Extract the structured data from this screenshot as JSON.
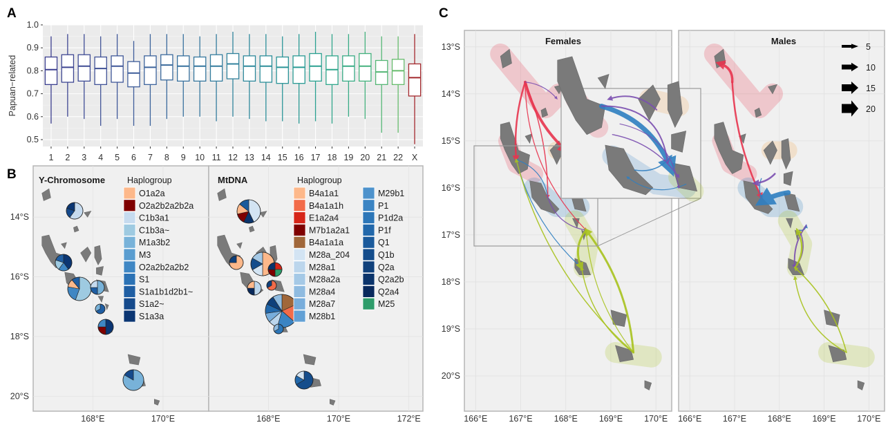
{
  "panels": {
    "a_label": "A",
    "b_label": "B",
    "c_label": "C"
  },
  "chart_data": [
    {
      "type": "box",
      "panel": "A",
      "ylabel": "Papuan−related",
      "ylim": [
        0.47,
        1.0
      ],
      "yticks": [
        "0.5",
        "0.6",
        "0.7",
        "0.8",
        "0.9",
        "1.0"
      ],
      "categories": [
        "1",
        "2",
        "3",
        "4",
        "5",
        "6",
        "7",
        "8",
        "9",
        "10",
        "11",
        "12",
        "13",
        "14",
        "15",
        "16",
        "17",
        "18",
        "19",
        "20",
        "21",
        "22",
        "X"
      ],
      "colors": [
        "#3b3f8f",
        "#3d4591",
        "#3e4b94",
        "#3f5196",
        "#3f5798",
        "#3e5d9a",
        "#3c639b",
        "#3a699c",
        "#37709d",
        "#35769d",
        "#337c9d",
        "#31829c",
        "#2e889b",
        "#2c8e99",
        "#2a9497",
        "#299a94",
        "#2aa090",
        "#2fa68b",
        "#38ab85",
        "#44b17d",
        "#54b675",
        "#66bb6c",
        "#a3282c"
      ],
      "boxes": [
        {
          "min": 0.57,
          "q1": 0.74,
          "median": 0.805,
          "q3": 0.86,
          "max": 0.95
        },
        {
          "min": 0.6,
          "q1": 0.75,
          "median": 0.815,
          "q3": 0.87,
          "max": 0.96
        },
        {
          "min": 0.59,
          "q1": 0.755,
          "median": 0.82,
          "q3": 0.87,
          "max": 0.96
        },
        {
          "min": 0.56,
          "q1": 0.74,
          "median": 0.81,
          "q3": 0.86,
          "max": 0.95
        },
        {
          "min": 0.59,
          "q1": 0.75,
          "median": 0.82,
          "q3": 0.865,
          "max": 0.96
        },
        {
          "min": 0.56,
          "q1": 0.73,
          "median": 0.79,
          "q3": 0.84,
          "max": 0.93
        },
        {
          "min": 0.56,
          "q1": 0.74,
          "median": 0.815,
          "q3": 0.865,
          "max": 0.96
        },
        {
          "min": 0.59,
          "q1": 0.76,
          "median": 0.825,
          "q3": 0.87,
          "max": 0.96
        },
        {
          "min": 0.6,
          "q1": 0.755,
          "median": 0.82,
          "q3": 0.865,
          "max": 0.96
        },
        {
          "min": 0.6,
          "q1": 0.755,
          "median": 0.82,
          "q3": 0.86,
          "max": 0.95
        },
        {
          "min": 0.58,
          "q1": 0.755,
          "median": 0.82,
          "q3": 0.87,
          "max": 0.96
        },
        {
          "min": 0.6,
          "q1": 0.765,
          "median": 0.83,
          "q3": 0.875,
          "max": 0.97
        },
        {
          "min": 0.59,
          "q1": 0.755,
          "median": 0.82,
          "q3": 0.865,
          "max": 0.96
        },
        {
          "min": 0.58,
          "q1": 0.75,
          "median": 0.82,
          "q3": 0.865,
          "max": 0.96
        },
        {
          "min": 0.58,
          "q1": 0.745,
          "median": 0.815,
          "q3": 0.86,
          "max": 0.95
        },
        {
          "min": 0.57,
          "q1": 0.745,
          "median": 0.815,
          "q3": 0.865,
          "max": 0.96
        },
        {
          "min": 0.58,
          "q1": 0.755,
          "median": 0.82,
          "q3": 0.875,
          "max": 0.97
        },
        {
          "min": 0.57,
          "q1": 0.74,
          "median": 0.805,
          "q3": 0.865,
          "max": 0.96
        },
        {
          "min": 0.6,
          "q1": 0.755,
          "median": 0.82,
          "q3": 0.865,
          "max": 0.96
        },
        {
          "min": 0.59,
          "q1": 0.755,
          "median": 0.82,
          "q3": 0.875,
          "max": 0.97
        },
        {
          "min": 0.53,
          "q1": 0.74,
          "median": 0.795,
          "q3": 0.845,
          "max": 0.95
        },
        {
          "min": 0.53,
          "q1": 0.74,
          "median": 0.8,
          "q3": 0.85,
          "max": 0.95
        },
        {
          "min": 0.48,
          "q1": 0.69,
          "median": 0.77,
          "q3": 0.83,
          "max": 0.96
        }
      ]
    },
    {
      "type": "map",
      "panel": "B",
      "facets": [
        "Y-Chromosome",
        "MtDNA"
      ],
      "legend_title": "Haplogroup",
      "y_legend": [
        {
          "label": "O1a2a",
          "color": "#fdb88a"
        },
        {
          "label": "O2a2b2a2b2a",
          "color": "#7f0000"
        },
        {
          "label": "C1b3a1",
          "color": "#c6dbef"
        },
        {
          "label": "C1b3a~",
          "color": "#9ecae1"
        },
        {
          "label": "M1a3b2",
          "color": "#78b2d9"
        },
        {
          "label": "M3",
          "color": "#5a9dd0"
        },
        {
          "label": "O2a2b2a2b2",
          "color": "#3f87c4"
        },
        {
          "label": "S1",
          "color": "#2b72b5"
        },
        {
          "label": "S1a1b1d2b1~",
          "color": "#1f5ea3"
        },
        {
          "label": "S1a2~",
          "color": "#154a8c"
        },
        {
          "label": "S1a3a",
          "color": "#0b3673"
        }
      ],
      "mt_legend_col1": [
        {
          "label": "B4a1a1",
          "color": "#fdb88a"
        },
        {
          "label": "B4a1a1h",
          "color": "#f26b49"
        },
        {
          "label": "E1a2a4",
          "color": "#d62518"
        },
        {
          "label": "M7b1a2a1",
          "color": "#7f0000"
        },
        {
          "label": "B4a1a1a",
          "color": "#a0673a"
        },
        {
          "label": "M28a_204",
          "color": "#d3e4f3"
        },
        {
          "label": "M28a1",
          "color": "#bcd6ec"
        },
        {
          "label": "M28a2a",
          "color": "#a5c9e6"
        },
        {
          "label": "M28a4",
          "color": "#8fbbe0"
        },
        {
          "label": "M28a7",
          "color": "#78addb"
        },
        {
          "label": "M28b1",
          "color": "#62a0d5"
        }
      ],
      "mt_legend_col2": [
        {
          "label": "M29b1",
          "color": "#4d92cc"
        },
        {
          "label": "P1",
          "color": "#3b84c3"
        },
        {
          "label": "P1d2a",
          "color": "#2c76b8"
        },
        {
          "label": "P1f",
          "color": "#2268ab"
        },
        {
          "label": "Q1",
          "color": "#1a5a9c"
        },
        {
          "label": "Q1b",
          "color": "#144d8c"
        },
        {
          "label": "Q2a",
          "color": "#0f407b"
        },
        {
          "label": "Q2a2b",
          "color": "#0b346b"
        },
        {
          "label": "Q2a4",
          "color": "#08295c"
        },
        {
          "label": "M25",
          "color": "#2e9c6a"
        }
      ],
      "y_ticks": [
        "14°S",
        "16°S",
        "18°S",
        "20°S"
      ],
      "x_ticks_y": [
        "168°E",
        "170°E"
      ],
      "x_ticks_mt": [
        "168°E",
        "170°E",
        "172°E"
      ]
    },
    {
      "type": "map",
      "panel": "C",
      "facets": [
        "Females",
        "Males"
      ],
      "y_ticks": [
        "13°S",
        "14°S",
        "15°S",
        "16°S",
        "17°S",
        "18°S",
        "19°S",
        "20°S"
      ],
      "x_ticks_females": [
        "166°E",
        "167°E",
        "168°E",
        "169°E",
        "170°E"
      ],
      "x_ticks_males": [
        "166°E",
        "167°E",
        "168°E",
        "169°E",
        "170°E"
      ],
      "arrow_legend": [
        "5",
        "10",
        "15",
        "20"
      ],
      "region_colors": {
        "north": "#e8354f",
        "central": "#7b4fb0",
        "west": "#2f7fc1",
        "south": "#a9c31f",
        "east": "#f0a24a"
      }
    }
  ]
}
